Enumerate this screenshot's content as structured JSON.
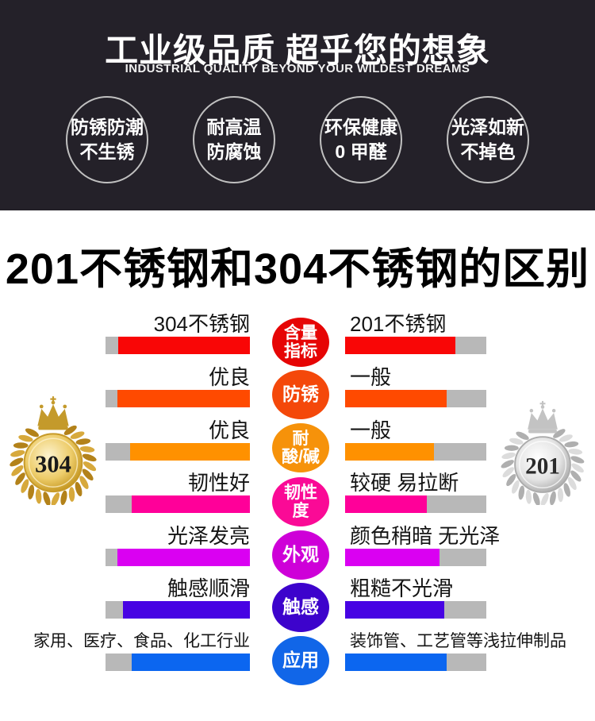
{
  "header": {
    "bg_color": "#242129",
    "title": "工业级品质 超乎您的想象",
    "subtitle": "INDUSTRIAL QUALITY BEYOND YOUR WILDEST DREAMS",
    "features": [
      {
        "line1": "防锈防潮",
        "line2": "不生锈"
      },
      {
        "line1": "耐高温",
        "line2": "防腐蚀"
      },
      {
        "line1": "环保健康",
        "line2": "0 甲醛"
      },
      {
        "line1": "光泽如新",
        "line2": "不掉色"
      }
    ]
  },
  "section_title": "201不锈钢和304不锈钢的区别",
  "badges": {
    "left": {
      "number": "304",
      "style": "gold",
      "colors": {
        "leaf_a": "#D7A93C",
        "leaf_b": "#B3821A",
        "medal_center": "#FDF3CF",
        "medal_mid": "#EDCC69",
        "medal_edge": "#B8860B",
        "ring": "#C79A28",
        "crown": "#C49A2B",
        "text": "#1A1A1A"
      }
    },
    "right": {
      "number": "201",
      "style": "silver",
      "colors": {
        "leaf_a": "#DCDCDC",
        "leaf_b": "#AFAFAF",
        "medal_center": "#FFFFFF",
        "medal_mid": "#E4E4E4",
        "medal_edge": "#9C9C9C",
        "ring": "#ABABAB",
        "crown": "#C3C3C3",
        "text": "#2B2B2B"
      }
    }
  },
  "chart_data": {
    "type": "bar",
    "title": "201不锈钢和304不锈钢的区别",
    "left_series_name": "304不锈钢",
    "right_series_name": "201不锈钢",
    "track_color": "#B8B8B8",
    "note": "fill_pct = colored portion of each comparison bar (score), bars grow from center outward",
    "metrics": [
      {
        "metric": "含量指标",
        "metric_lines": [
          "含量",
          "指标"
        ],
        "circle_color": "#E60505",
        "bar_color": "#F90606",
        "left": {
          "label": "304不锈钢",
          "fill_pct": 91
        },
        "right": {
          "label": "201不锈钢",
          "fill_pct": 78
        }
      },
      {
        "metric": "防锈",
        "metric_lines": [
          "防锈"
        ],
        "circle_color": "#F4480A",
        "bar_color": "#FF4A00",
        "left": {
          "label": "优良",
          "fill_pct": 92
        },
        "right": {
          "label": "一般",
          "fill_pct": 72
        }
      },
      {
        "metric": "耐酸/碱",
        "metric_lines": [
          "耐",
          "酸/碱"
        ],
        "circle_color": "#F6920A",
        "bar_color": "#FF9100",
        "left": {
          "label": "优良",
          "fill_pct": 83
        },
        "right": {
          "label": "一般",
          "fill_pct": 63
        }
      },
      {
        "metric": "韧性度",
        "metric_lines": [
          "韧性",
          "度"
        ],
        "circle_color": "#FA0A96",
        "bar_color": "#FF0099",
        "left": {
          "label": "韧性好",
          "fill_pct": 82
        },
        "right": {
          "label": "较硬 易拉断",
          "fill_pct": 58
        }
      },
      {
        "metric": "外观",
        "metric_lines": [
          "外观"
        ],
        "circle_color": "#CE00D8",
        "bar_color": "#DA00F2",
        "left": {
          "label": "光泽发亮",
          "fill_pct": 92
        },
        "right": {
          "label": "颜色稍暗 无光泽",
          "fill_pct": 67
        }
      },
      {
        "metric": "触感",
        "metric_lines": [
          "触感"
        ],
        "circle_color": "#3D03CC",
        "bar_color": "#4703E3",
        "left": {
          "label": "触感顺滑",
          "fill_pct": 88
        },
        "right": {
          "label": "粗糙不光滑",
          "fill_pct": 70
        }
      },
      {
        "metric": "应用",
        "metric_lines": [
          "应用"
        ],
        "circle_color": "#1166E8",
        "bar_color": "#0B66F0",
        "left": {
          "label": "家用、医疗、食品、化工行业",
          "fill_pct": 82,
          "small": true
        },
        "right": {
          "label": "装饰管、工艺管等浅拉伸制品",
          "fill_pct": 72,
          "small": true
        }
      }
    ]
  }
}
